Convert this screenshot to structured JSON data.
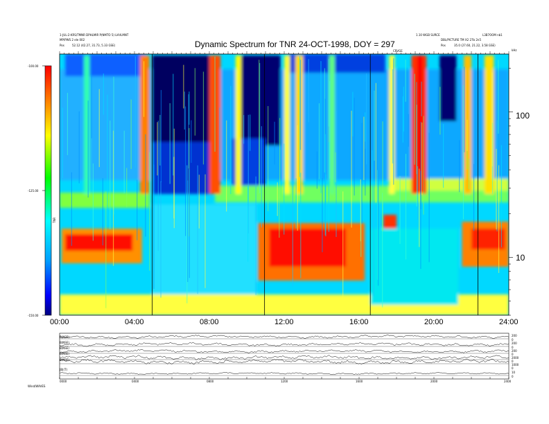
{
  "header": {
    "left_line1": "1-JUL-2-KRS/TMNR DPHLMIR P(NMTO 5) LHVLMNT",
    "left_line2": "MP/PWS 2 ele 002",
    "left_line3_label": "Pos",
    "left_line3_value": "52.12 (42.27, 31.73, 5.33 GSE)",
    "right_line1": "1.10 WGB SURCE",
    "right_line1b": "L3B7OOM nb1",
    "right_line2": "DBL/PICTURE TM X2 27b 2n5",
    "right_line3_label": "Pos",
    "right_line3_value": "35.0 (27.60, 21.22, 3.58 GSE)",
    "marker_label": "CRVGE",
    "freq_unit": "kHz"
  },
  "chart_data": [
    {
      "type": "heatmap",
      "title": "Dynamic Spectrum for TNR 24-OCT-1998, DOY = 297",
      "x": [
        "00:00",
        "04:00",
        "08:00",
        "12:00",
        "16:00",
        "20:00",
        "24:00"
      ],
      "xlim": [
        0,
        24
      ],
      "y_scale": "log",
      "y_ticks": [
        10,
        100
      ],
      "ylim": [
        4,
        250
      ],
      "colorbar": {
        "ticks": [
          "-100.00",
          "-125.00",
          "-150.00"
        ],
        "range": [
          -150,
          -100
        ],
        "label": "TNR",
        "colors": [
          "#000080",
          "#0000ff",
          "#00a0ff",
          "#00ffff",
          "#00ff00",
          "#ffff00",
          "#ff8000",
          "#ff0000"
        ]
      },
      "data_gaps_hours": [
        4.95,
        10.95,
        16.6,
        22.35
      ],
      "bands_note": "strong emission near 10-15 kHz, quiet dark bands 5-8 h, 9.5-12 h, 20-21 h"
    },
    {
      "type": "line",
      "series": [
        {
          "name": "B(NSE)",
          "right_ticks": [
            "200",
            "0"
          ]
        },
        {
          "name": "B(NSE)",
          "right_ticks": [
            "200",
            "0"
          ]
        },
        {
          "name": "B(NSE)",
          "right_ticks": [
            "200",
            "0"
          ]
        },
        {
          "name": "B(NSE)",
          "right_ticks": [
            "2000",
            "0"
          ]
        },
        {
          "name": "B(NSE)",
          "right_ticks": [
            "1000",
            "0"
          ]
        },
        {
          "name": "|B|(T)",
          "right_ticks": [
            "10",
            "0"
          ]
        }
      ],
      "x": [
        "0000",
        "0400",
        "0800",
        "1200",
        "1600",
        "2000",
        "2400"
      ],
      "footer": "Wind/WAVES"
    }
  ]
}
